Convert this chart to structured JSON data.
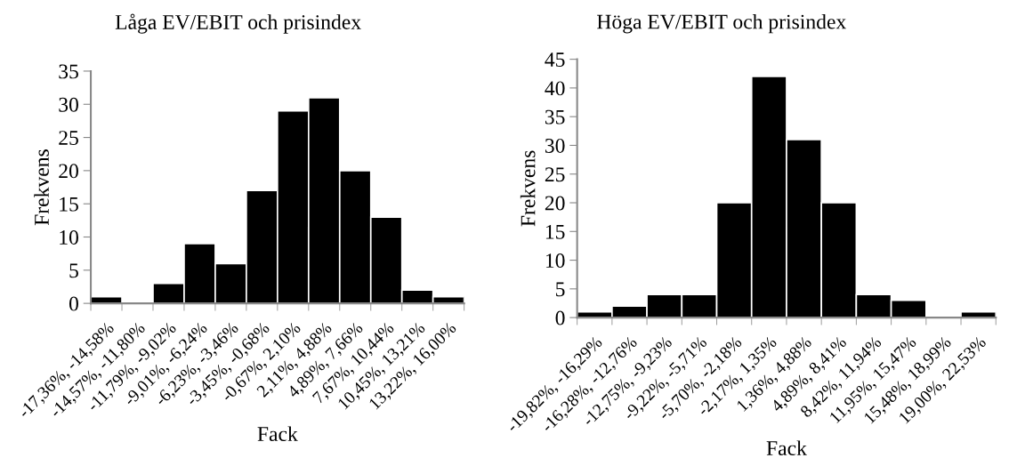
{
  "chart_data": [
    {
      "type": "bar",
      "title": "Låga EV/EBIT och prisindex",
      "xlabel": "Fack",
      "ylabel": "Frekvens",
      "categories": [
        "-17,36%, -14,58%",
        "-14,57%, -11,80%",
        "-11,79%, -9,02%",
        "-9,01%, -6,24%",
        "-6,23%, -3,46%",
        "-3,45%, -0,68%",
        "-0,67%, 2,10%",
        "2,11%, 4,88%",
        "4,89%, 7,66%",
        "7,67%, 10,44%",
        "10,45%, 13,21%",
        "13,22%, 16,00%"
      ],
      "values": [
        1,
        0,
        3,
        9,
        6,
        17,
        29,
        31,
        20,
        13,
        2,
        1
      ],
      "color": "#000000",
      "ylim": [
        0,
        35
      ],
      "yticks": [
        0,
        5,
        10,
        15,
        20,
        25,
        30,
        35
      ],
      "grid": false,
      "legend": false
    },
    {
      "type": "bar",
      "title": "Höga EV/EBIT och prisindex",
      "xlabel": "Fack",
      "ylabel": "Frekvens",
      "categories": [
        "-19,82%, -16,29%",
        "-16,28%, -12,76%",
        "-12,75%, -9,23%",
        "-9,22%, -5,71%",
        "-5,70%, -2,18%",
        "-2,17%, 1,35%",
        "1,36%, 4,88%",
        "4,89%, 8,41%",
        "8,42%, 11,94%",
        "11,95%, 15,47%",
        "15,48%, 18,99%",
        "19,00%, 22,53%"
      ],
      "values": [
        1,
        2,
        4,
        4,
        20,
        42,
        31,
        20,
        4,
        3,
        0,
        1
      ],
      "color": "#000000",
      "ylim": [
        0,
        45
      ],
      "yticks": [
        0,
        5,
        10,
        15,
        20,
        25,
        30,
        35,
        40,
        45
      ],
      "grid": false,
      "legend": false
    }
  ]
}
